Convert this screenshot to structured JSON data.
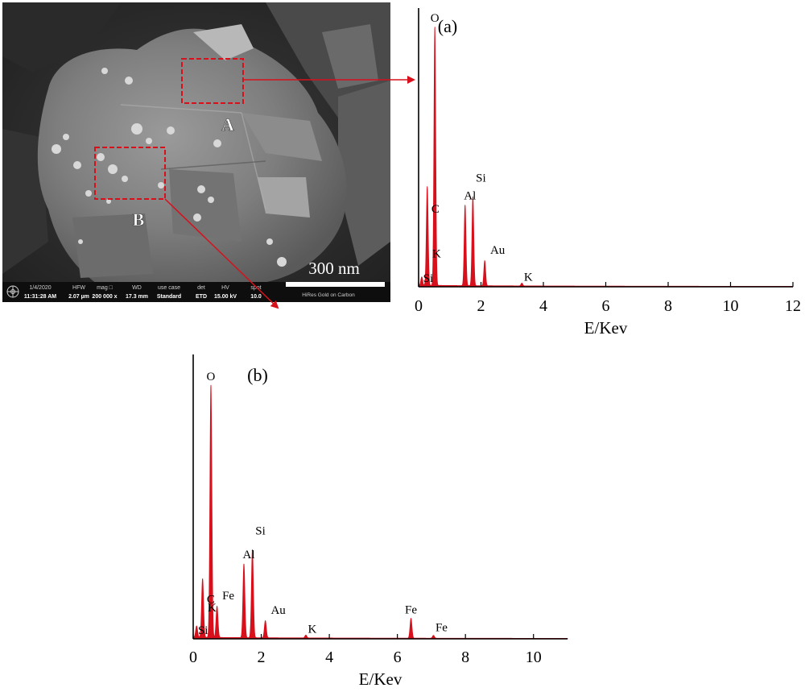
{
  "sem_image": {
    "region_labels": [
      "A",
      "B"
    ],
    "scale_bar_label": "300 nm",
    "info_bar": {
      "fields": [
        {
          "head": "1/4/2020",
          "value": "11:31:28 AM"
        },
        {
          "head": "HFW",
          "value": "2.07 µm"
        },
        {
          "head": "mag □",
          "value": "200 000 x"
        },
        {
          "head": "WD",
          "value": "17.3 mm"
        },
        {
          "head": "use case",
          "value": "Standard"
        },
        {
          "head": "det",
          "value": "ETD"
        },
        {
          "head": "HV",
          "value": "15.00 kV"
        },
        {
          "head": "spot",
          "value": "10.0"
        }
      ],
      "sample_label": "HiRes Gold on Carbon"
    }
  },
  "chart_data": [
    {
      "type": "line",
      "panel_label": "(a)",
      "xlabel": "E/Kev",
      "ylabel": "",
      "xlim": [
        0,
        12
      ],
      "xticks": [
        0,
        2,
        4,
        6,
        8,
        10,
        12
      ],
      "ylim": [
        0,
        1.0
      ],
      "grid": false,
      "color": "#d8101c",
      "peaks": [
        {
          "label": "Si",
          "x": 0.1,
          "y": 0.03
        },
        {
          "label": "K",
          "x": 0.27,
          "y": 0.1
        },
        {
          "label": "C",
          "x": 0.28,
          "y": 0.26
        },
        {
          "label": "O",
          "x": 0.52,
          "y": 0.93
        },
        {
          "label": "Al",
          "x": 1.49,
          "y": 0.29
        },
        {
          "label": "Si",
          "x": 1.74,
          "y": 0.32
        },
        {
          "label": "Au",
          "x": 2.12,
          "y": 0.09
        },
        {
          "label": "K",
          "x": 3.31,
          "y": 0.01
        }
      ]
    },
    {
      "type": "line",
      "panel_label": "(b)",
      "xlabel": "E/Kev",
      "ylabel": "",
      "xlim": [
        0,
        11
      ],
      "xticks": [
        0,
        2,
        4,
        6,
        8,
        10
      ],
      "ylim": [
        0,
        1.0
      ],
      "grid": false,
      "color": "#d8101c",
      "peaks": [
        {
          "label": "Si",
          "x": 0.1,
          "y": 0.04
        },
        {
          "label": "K",
          "x": 0.27,
          "y": 0.09
        },
        {
          "label": "C",
          "x": 0.28,
          "y": 0.12
        },
        {
          "label": "O",
          "x": 0.52,
          "y": 0.89
        },
        {
          "label": "Fe",
          "x": 0.7,
          "y": 0.11
        },
        {
          "label": "Al",
          "x": 1.49,
          "y": 0.26
        },
        {
          "label": "Si",
          "x": 1.74,
          "y": 0.31
        },
        {
          "label": "Au",
          "x": 2.12,
          "y": 0.06
        },
        {
          "label": "K",
          "x": 3.31,
          "y": 0.01
        },
        {
          "label": "Fe",
          "x": 6.4,
          "y": 0.07
        },
        {
          "label": "Fe",
          "x": 7.06,
          "y": 0.01
        }
      ]
    }
  ]
}
